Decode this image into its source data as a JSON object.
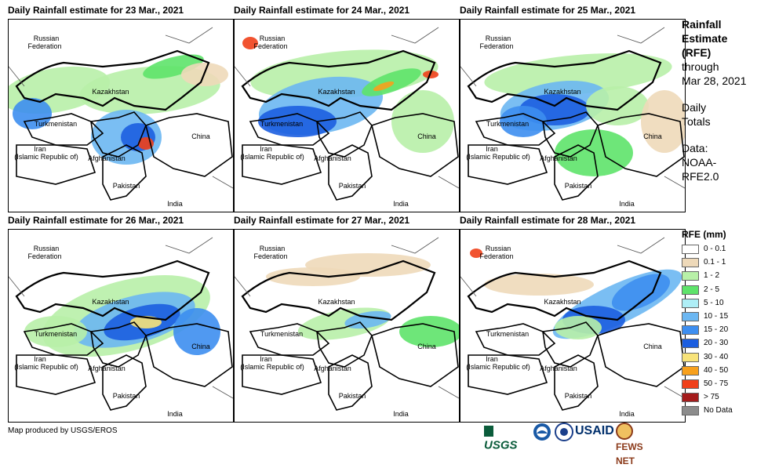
{
  "panels": [
    {
      "title": "Daily Rainfall estimate for 23 Mar., 2021"
    },
    {
      "title": "Daily Rainfall estimate for 24 Mar., 2021"
    },
    {
      "title": "Daily Rainfall estimate for 25 Mar., 2021"
    },
    {
      "title": "Daily Rainfall estimate for 26 Mar., 2021"
    },
    {
      "title": "Daily Rainfall estimate for 27 Mar., 2021"
    },
    {
      "title": "Daily Rainfall estimate for 28 Mar., 2021"
    }
  ],
  "map_labels": {
    "russia_1": "Russian",
    "russia_2": "Federation",
    "kazakhstan": "Kazakhstan",
    "turkmenistan": "Turkmenistan",
    "iran_1": "Iran",
    "iran_2": "(Islamic Republic of)",
    "afghanistan": "Afghanistan",
    "pakistan": "Pakistan",
    "india": "India",
    "china": "China"
  },
  "sidebar": {
    "title_1": "Rainfall",
    "title_2": "Estimate",
    "title_3": "(RFE)",
    "through_1": "through",
    "through_2": "Mar 28, 2021",
    "daily_1": "Daily",
    "daily_2": "Totals",
    "data_1": "Data:",
    "data_2": "NOAA-",
    "data_3": "RFE2.0"
  },
  "legend": {
    "title": "RFE (mm)",
    "items": [
      {
        "label": "0 - 0.1",
        "color": "#ffffff"
      },
      {
        "label": "0.1 - 1",
        "color": "#eed9b9"
      },
      {
        "label": "1 - 2",
        "color": "#b8f0a8"
      },
      {
        "label": "2 - 5",
        "color": "#5ee36a"
      },
      {
        "label": "5 - 10",
        "color": "#aeeef6"
      },
      {
        "label": "10 - 15",
        "color": "#6cb7f2"
      },
      {
        "label": "15 - 20",
        "color": "#3d8ef0"
      },
      {
        "label": "20 - 30",
        "color": "#1c5ee0"
      },
      {
        "label": "30 - 40",
        "color": "#f8e37a"
      },
      {
        "label": "40 - 50",
        "color": "#f7a01c"
      },
      {
        "label": "50 - 75",
        "color": "#f0401a"
      },
      {
        "label": "> 75",
        "color": "#a51c1c"
      },
      {
        "label": "No Data",
        "color": "#8c8c8c"
      }
    ]
  },
  "credit": "Map produced by USGS/EROS",
  "logos": {
    "usgs": "USGS",
    "usaid": "USAID",
    "fewsnet": "FEWS NET"
  }
}
